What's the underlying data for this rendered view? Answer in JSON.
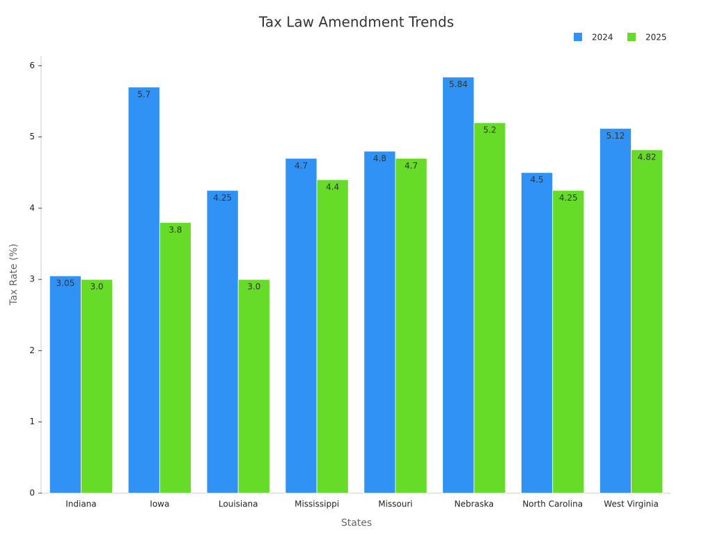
{
  "chart_data": {
    "type": "bar",
    "title": "Tax Law Amendment Trends",
    "x_label": "States",
    "y_label": "Tax Rate (%)",
    "categories": [
      "Indiana",
      "Iowa",
      "Louisiana",
      "Mississippi",
      "Missouri",
      "Nebraska",
      "North Carolina",
      "West Virginia"
    ],
    "series": [
      {
        "name": "2024",
        "color": "#3192f6",
        "values": [
          3.05,
          5.7,
          4.25,
          4.7,
          4.8,
          5.84,
          4.5,
          5.12
        ],
        "value_labels": [
          "3.05",
          "5.7",
          "4.25",
          "4.7",
          "4.8",
          "5.84",
          "4.5",
          "5.12"
        ]
      },
      {
        "name": "2025",
        "color": "#66db28",
        "values": [
          3.0,
          3.8,
          3.0,
          4.4,
          4.7,
          5.2,
          4.25,
          4.82
        ],
        "value_labels": [
          "3.0",
          "3.8",
          "3.0",
          "4.4",
          "4.7",
          "5.2",
          "4.25",
          "4.82"
        ]
      }
    ],
    "ylim": [
      0,
      6.14
    ],
    "yticks": [
      0,
      1,
      2,
      3,
      4,
      5,
      6
    ],
    "grid": false,
    "legend": "top-right"
  }
}
